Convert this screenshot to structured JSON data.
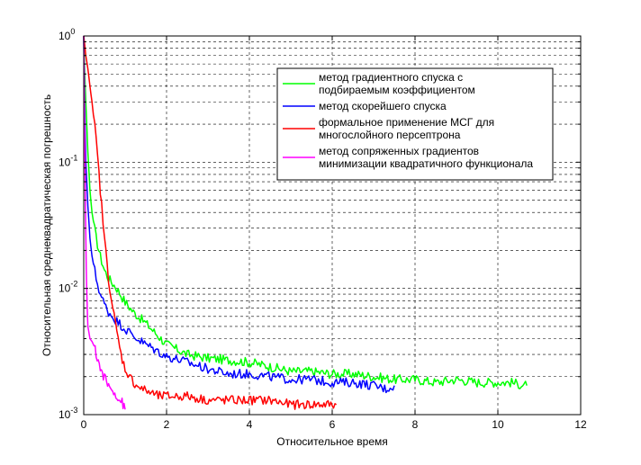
{
  "chart_data": {
    "type": "line",
    "title": "",
    "xlabel": "Относительное время",
    "ylabel": "Относительная среднеквадратическая погрешность",
    "xscale": "linear",
    "yscale": "log",
    "xlim": [
      0,
      12
    ],
    "ylim": [
      0.001,
      1
    ],
    "xticks": [
      0,
      2,
      4,
      6,
      8,
      10,
      12
    ],
    "yticks": [
      {
        "base": "10",
        "exp": "-3",
        "value": 0.001
      },
      {
        "base": "10",
        "exp": "-2",
        "value": 0.01
      },
      {
        "base": "10",
        "exp": "-1",
        "value": 0.1
      },
      {
        "base": "10",
        "exp": "0",
        "value": 1
      }
    ],
    "grid": true,
    "legend_position": "top-right",
    "series": [
      {
        "name": "метод градиентного спуска с подбираемым коэффициентом",
        "legend_lines": [
          "метод градиентного спуска с",
          "подбираемым коэффициентом"
        ],
        "color": "#00ff00",
        "x": [
          0.0,
          0.02,
          0.05,
          0.1,
          0.15,
          0.2,
          0.3,
          0.4,
          0.5,
          0.6,
          0.8,
          1.0,
          1.2,
          1.5,
          2.0,
          2.5,
          3.0,
          3.5,
          4.0,
          4.5,
          5.0,
          5.5,
          6.0,
          6.5,
          7.0,
          7.5,
          8.0,
          8.5,
          9.0,
          9.5,
          10.0,
          10.3,
          10.7
        ],
        "y": [
          1.0,
          0.55,
          0.3,
          0.12,
          0.06,
          0.04,
          0.025,
          0.018,
          0.014,
          0.012,
          0.01,
          0.0078,
          0.0065,
          0.0053,
          0.0036,
          0.003,
          0.0028,
          0.0027,
          0.0026,
          0.0024,
          0.0022,
          0.0022,
          0.0021,
          0.0021,
          0.002,
          0.0019,
          0.0019,
          0.0018,
          0.0019,
          0.0018,
          0.0018,
          0.0018,
          0.0017
        ]
      },
      {
        "name": "метод скорейшего спуска",
        "legend_lines": [
          "метод скорейшего спуска"
        ],
        "color": "#0000ff",
        "x": [
          0.0,
          0.02,
          0.05,
          0.1,
          0.15,
          0.2,
          0.3,
          0.4,
          0.5,
          0.6,
          0.8,
          1.0,
          1.2,
          1.5,
          2.0,
          2.5,
          3.0,
          3.5,
          4.0,
          4.5,
          5.0,
          5.5,
          6.0,
          6.5,
          7.0,
          7.3,
          7.5
        ],
        "y": [
          1.0,
          0.3,
          0.1,
          0.045,
          0.025,
          0.018,
          0.012,
          0.009,
          0.0075,
          0.0065,
          0.0055,
          0.0048,
          0.0042,
          0.0036,
          0.0029,
          0.0026,
          0.0023,
          0.0021,
          0.0021,
          0.002,
          0.0019,
          0.0019,
          0.0018,
          0.0018,
          0.0017,
          0.0016,
          0.0017
        ]
      },
      {
        "name": "формальное применение МСГ для многослойного персептрона",
        "legend_lines": [
          "формальное применение МСГ для",
          "многослойного персептрона"
        ],
        "color": "#ff0000",
        "x": [
          0.0,
          0.05,
          0.1,
          0.15,
          0.2,
          0.3,
          0.4,
          0.5,
          0.6,
          0.7,
          0.8,
          0.9,
          1.0,
          1.2,
          1.4,
          1.6,
          1.8,
          2.0,
          2.5,
          3.0,
          3.5,
          4.0,
          4.5,
          5.0,
          5.5,
          6.0,
          6.1
        ],
        "y": [
          1.0,
          0.7,
          0.55,
          0.4,
          0.3,
          0.15,
          0.06,
          0.025,
          0.012,
          0.007,
          0.0045,
          0.003,
          0.0023,
          0.0018,
          0.0016,
          0.0015,
          0.0014,
          0.0014,
          0.0014,
          0.0013,
          0.0013,
          0.0013,
          0.0013,
          0.0012,
          0.0012,
          0.0012,
          0.0012
        ]
      },
      {
        "name": "метод сопряженных градиентов минимизации квадратичного функционала",
        "legend_lines": [
          "метод сопряженных градиентов",
          "минимизации квадратичного функционала"
        ],
        "color": "#ff00ff",
        "x": [
          0.0,
          0.02,
          0.04,
          0.06,
          0.08,
          0.1,
          0.15,
          0.2,
          0.25,
          0.3,
          0.35,
          0.4,
          0.45,
          0.5,
          0.55,
          0.6,
          0.65,
          0.7,
          0.75,
          0.8,
          0.85,
          0.9,
          0.95,
          1.0
        ],
        "y": [
          1.0,
          0.2,
          0.05,
          0.015,
          0.008,
          0.005,
          0.004,
          0.0038,
          0.0035,
          0.003,
          0.0027,
          0.0023,
          0.0021,
          0.002,
          0.0018,
          0.0017,
          0.0016,
          0.0016,
          0.0015,
          0.0014,
          0.0013,
          0.0013,
          0.0012,
          0.0011
        ]
      }
    ]
  }
}
